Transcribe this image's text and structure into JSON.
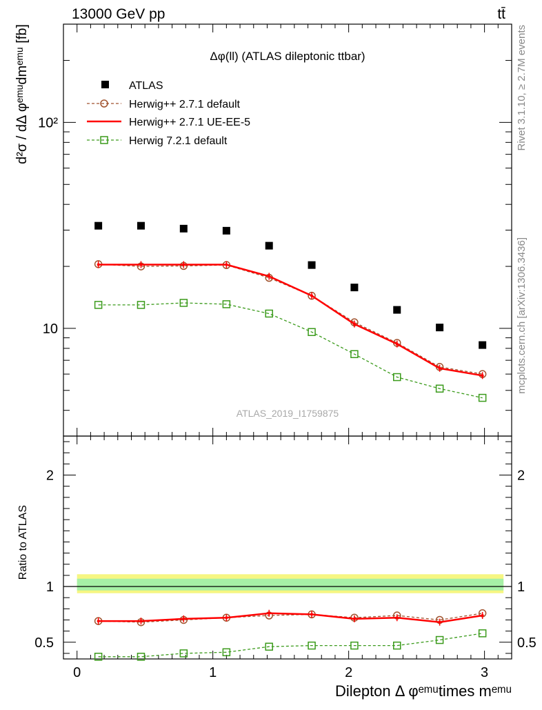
{
  "header": {
    "energy_label": "13000 GeV pp",
    "process_label": "tt̄"
  },
  "plot_title": "Δφ(ll) (ATLAS dileptonic ttbar)",
  "watermark": "ATLAS_2019_I1759875",
  "side_labels": {
    "rivet": "Rivet 3.1.10, ≥ 2.7M events",
    "source": "mcplots.cern.ch [arXiv:1306.3436]"
  },
  "ylabel_main": "d²σ / dΔ φᵉᵐᵘdmᵉᵐᵘ [fb]",
  "ylabel_ratio": "Ratio to ATLAS",
  "xlabel": "Dilepton Δ φᵉᵐᵘtimes mᵉᵐᵘ",
  "chart_data": {
    "type": "scatter",
    "title": "Δφ(ll) (ATLAS dileptonic ttbar)",
    "x_ticks": [
      "0",
      "1",
      "2",
      "3"
    ],
    "xlim": [
      -0.1,
      3.2
    ],
    "main": {
      "yscale": "log",
      "ylim": [
        3.0,
        300
      ],
      "y_ticks": [
        {
          "value": 10,
          "label": "10"
        },
        {
          "value": 100,
          "label": "10²"
        }
      ]
    },
    "ratio": {
      "ylim": [
        0.35,
        2.35
      ],
      "y_ticks": [
        {
          "value": 0.5,
          "label": "0.5"
        },
        {
          "value": 1,
          "label": "1"
        },
        {
          "value": 2,
          "label": "2"
        }
      ]
    },
    "x": [
      0.157,
      0.471,
      0.785,
      1.1,
      1.414,
      1.728,
      2.042,
      2.356,
      2.67,
      2.985
    ],
    "series": [
      {
        "name": "ATLAS",
        "style": "data",
        "color": "#000000",
        "values": [
          31.5,
          31.5,
          30.5,
          29.8,
          25.2,
          20.3,
          15.8,
          12.3,
          10.1,
          8.3
        ],
        "ratio": [
          1,
          1,
          1,
          1,
          1,
          1,
          1,
          1,
          1,
          1
        ]
      },
      {
        "name": "Herwig++ 2.7.1 default",
        "style": "dashed-circle",
        "color": "#a0522d",
        "values": [
          20.5,
          20.0,
          20.1,
          20.3,
          17.6,
          14.4,
          10.7,
          8.5,
          6.5,
          6.0
        ],
        "ratio": [
          0.69,
          0.68,
          0.7,
          0.72,
          0.74,
          0.75,
          0.72,
          0.74,
          0.7,
          0.76
        ]
      },
      {
        "name": "Herwig++ 2.7.1 UE-EE-5",
        "style": "solid",
        "color": "#ff0000",
        "values": [
          20.4,
          20.4,
          20.4,
          20.4,
          17.9,
          14.4,
          10.5,
          8.4,
          6.4,
          5.9
        ],
        "ratio": [
          0.69,
          0.69,
          0.71,
          0.72,
          0.76,
          0.75,
          0.71,
          0.72,
          0.68,
          0.74
        ]
      },
      {
        "name": "Herwig 7.2.1 default",
        "style": "dashed-square",
        "color": "#3a9a1a",
        "values": [
          13.0,
          13.0,
          13.3,
          13.1,
          11.8,
          9.6,
          7.5,
          5.8,
          5.1,
          4.6
        ],
        "ratio": [
          0.37,
          0.37,
          0.4,
          0.41,
          0.46,
          0.47,
          0.47,
          0.47,
          0.52,
          0.58
        ]
      }
    ]
  }
}
